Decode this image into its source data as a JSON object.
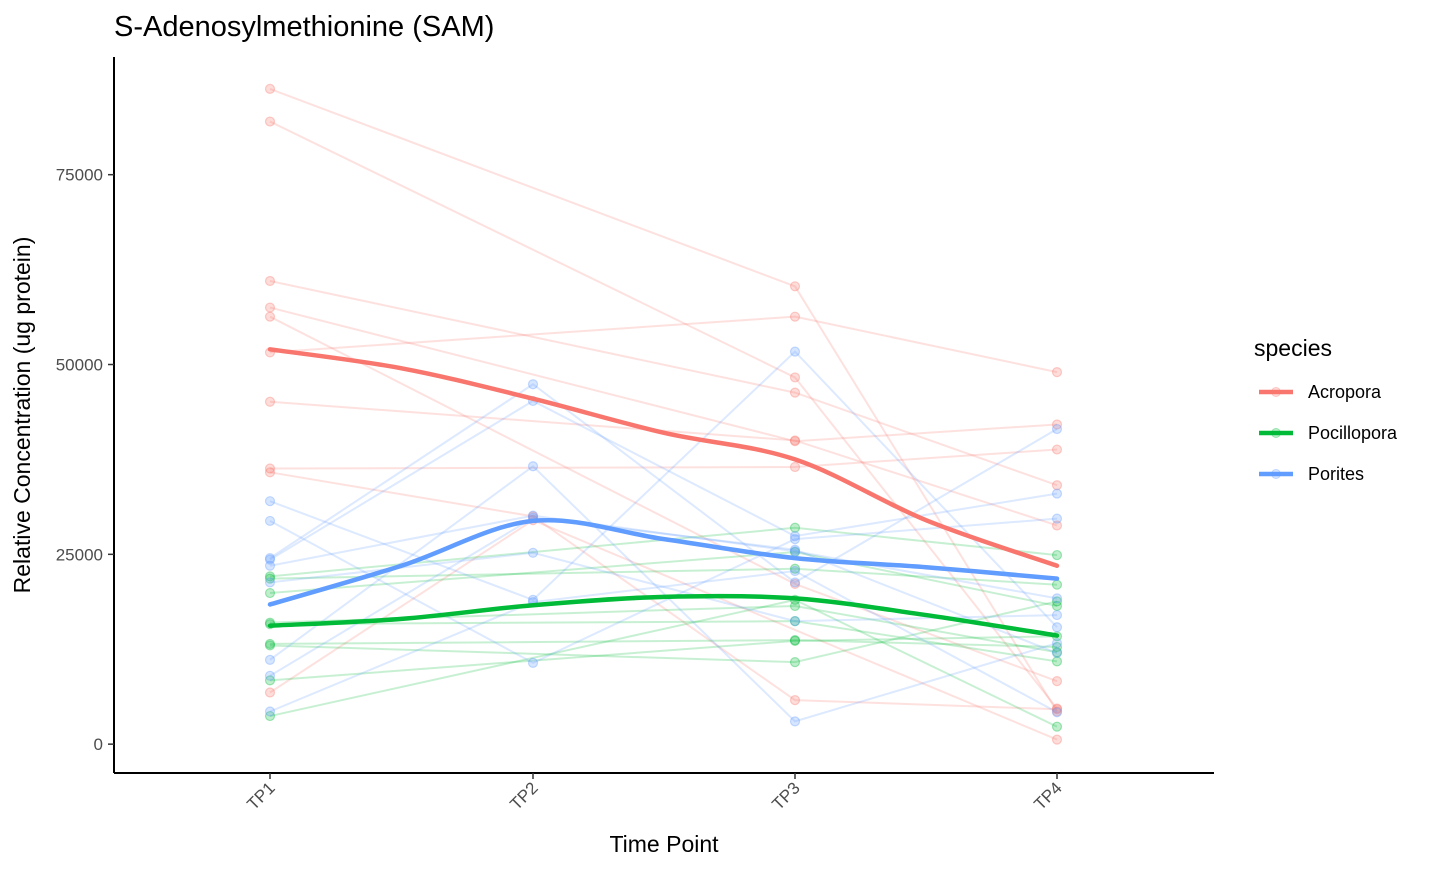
{
  "chart_data": {
    "type": "line",
    "title": "S-Adenosylmethionine (SAM)",
    "xlabel": "Time Point",
    "ylabel": "Relative Concentration (ug protein)",
    "categories": [
      "TP1",
      "TP2",
      "TP3",
      "TP4"
    ],
    "ylim": [
      -3800,
      90500
    ],
    "yticks": [
      0,
      25000,
      50000,
      75000
    ],
    "grid": false,
    "legend": {
      "title": "species",
      "position": "right"
    },
    "series": [
      {
        "name": "Acropora",
        "color": "#F8766D",
        "smooth": [
          {
            "x": 1.0,
            "y": 52000
          },
          {
            "x": 1.5,
            "y": 49500
          },
          {
            "x": 2.0,
            "y": 45500
          },
          {
            "x": 2.5,
            "y": 41000
          },
          {
            "x": 3.0,
            "y": 37500
          },
          {
            "x": 3.5,
            "y": 29500
          },
          {
            "x": 4.0,
            "y": 23500
          }
        ],
        "individuals": [
          [
            86300,
            null,
            60300,
            4300
          ],
          [
            82000,
            null,
            48300,
            4700
          ],
          [
            61000,
            null,
            46300,
            34100
          ],
          [
            57500,
            null,
            39900,
            42100
          ],
          [
            56300,
            null,
            21100,
            8300
          ],
          [
            51600,
            null,
            56300,
            49000
          ],
          [
            45100,
            null,
            40000,
            28800
          ],
          [
            36300,
            null,
            36500,
            38800
          ],
          [
            35800,
            30000,
            5800,
            4600
          ],
          [
            6800,
            29500,
            null,
            600
          ]
        ]
      },
      {
        "name": "Pocillopora",
        "color": "#00BA38",
        "smooth": [
          {
            "x": 1.0,
            "y": 15600
          },
          {
            "x": 1.5,
            "y": 16500
          },
          {
            "x": 2.0,
            "y": 18300
          },
          {
            "x": 2.5,
            "y": 19400
          },
          {
            "x": 3.0,
            "y": 19200
          },
          {
            "x": 3.5,
            "y": 17000
          },
          {
            "x": 4.0,
            "y": 14300
          }
        ],
        "individuals": [
          [
            22100,
            null,
            28500,
            24900
          ],
          [
            21800,
            null,
            23100,
            21000
          ],
          [
            19900,
            null,
            25300,
            18200
          ],
          [
            16000,
            null,
            18200,
            12100
          ],
          [
            15800,
            null,
            16200,
            10900
          ],
          [
            13200,
            null,
            13700,
            12800
          ],
          [
            13000,
            null,
            10800,
            18800
          ],
          [
            8400,
            null,
            13600,
            14200
          ],
          [
            3700,
            null,
            19000,
            2300
          ]
        ]
      },
      {
        "name": "Porites",
        "color": "#619CFF",
        "smooth": [
          {
            "x": 1.0,
            "y": 18400
          },
          {
            "x": 1.5,
            "y": 23500
          },
          {
            "x": 2.0,
            "y": 29400
          },
          {
            "x": 2.5,
            "y": 27000
          },
          {
            "x": 3.0,
            "y": 24500
          },
          {
            "x": 3.5,
            "y": 23300
          },
          {
            "x": 4.0,
            "y": 21800
          }
        ],
        "individuals": [
          [
            32000,
            19000,
            51700,
            15400
          ],
          [
            29400,
            10700,
            27000,
            29700
          ],
          [
            24500,
            47400,
            21300,
            41500
          ],
          [
            24300,
            45200,
            27400,
            33000
          ],
          [
            23500,
            30100,
            25400,
            19200
          ],
          [
            21300,
            25200,
            16200,
            17000
          ],
          [
            11100,
            36600,
            3000,
            13300
          ],
          [
            9000,
            29800,
            25600,
            12000
          ],
          [
            4300,
            18700,
            22800,
            4200
          ]
        ]
      }
    ]
  }
}
